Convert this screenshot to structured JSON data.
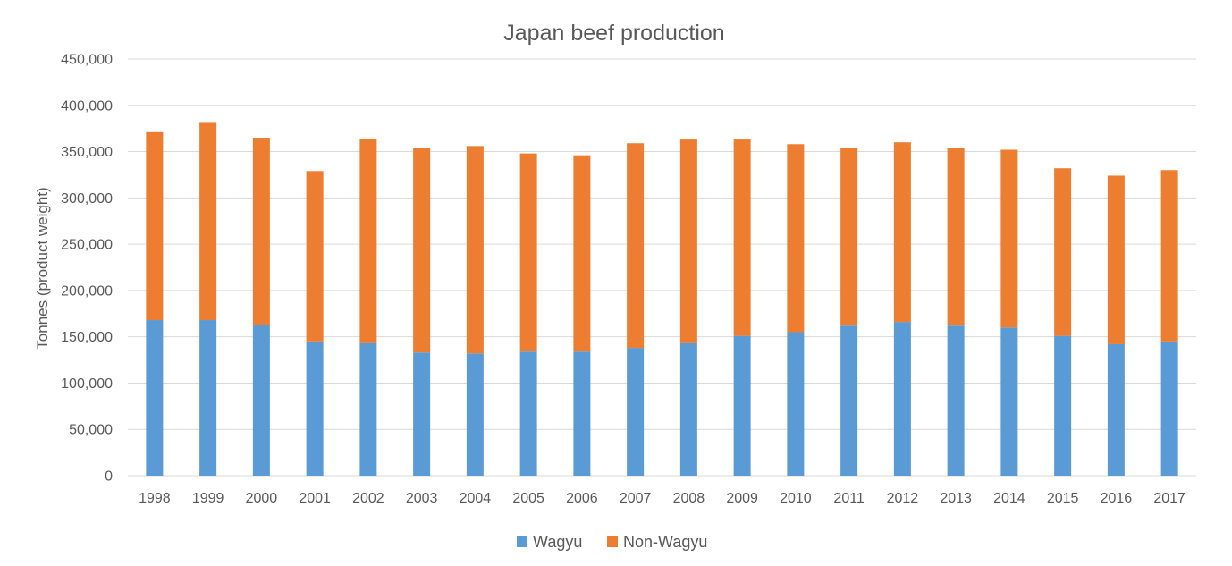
{
  "chart_data": {
    "type": "bar",
    "stacked": true,
    "title": "Japan beef production",
    "xlabel": "",
    "ylabel": "Tonnes (product weight)",
    "ylim": [
      0,
      450000
    ],
    "yticks": [
      "0",
      "50,000",
      "100,000",
      "150,000",
      "200,000",
      "250,000",
      "300,000",
      "350,000",
      "400,000",
      "450,000"
    ],
    "ytick_values": [
      0,
      50000,
      100000,
      150000,
      200000,
      250000,
      300000,
      350000,
      400000,
      450000
    ],
    "categories": [
      "1998",
      "1999",
      "2000",
      "2001",
      "2002",
      "2003",
      "2004",
      "2005",
      "2006",
      "2007",
      "2008",
      "2009",
      "2010",
      "2011",
      "2012",
      "2013",
      "2014",
      "2015",
      "2016",
      "2017"
    ],
    "series": [
      {
        "name": "Wagyu",
        "color": "#5b9bd5",
        "values": [
          168000,
          168000,
          163000,
          145000,
          143000,
          133000,
          132000,
          134000,
          134000,
          138000,
          143000,
          151000,
          155000,
          162000,
          166000,
          162000,
          160000,
          151000,
          142000,
          145000
        ]
      },
      {
        "name": "Non-Wagyu",
        "color": "#ed7d31",
        "values": [
          203000,
          213000,
          202000,
          184000,
          221000,
          221000,
          224000,
          214000,
          212000,
          221000,
          220000,
          212000,
          203000,
          192000,
          194000,
          192000,
          192000,
          181000,
          182000,
          185000
        ]
      }
    ],
    "grid": true,
    "legend_position": "bottom"
  }
}
